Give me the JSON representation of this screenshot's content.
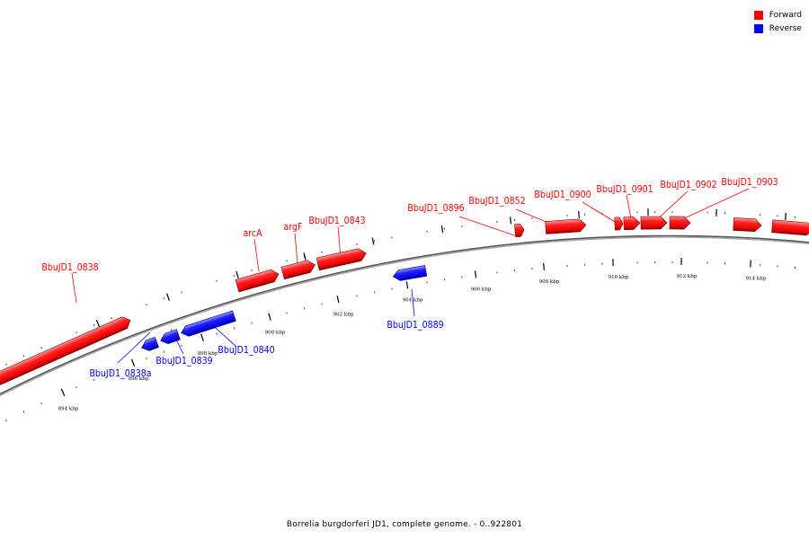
{
  "legend": [
    {
      "label": "Forward",
      "color": "#ff0000"
    },
    {
      "label": "Reverse",
      "color": "#0000ff"
    }
  ],
  "caption": "Borrelia burgdorferi JD1, complete genome. - 0..922801",
  "axis": {
    "unit": "kbp",
    "labels": [
      "894 kbp",
      "896 kbp",
      "898 kbp",
      "900 kbp",
      "902 kbp",
      "904 kbp",
      "906 kbp",
      "908 kbp",
      "910 kbp",
      "912 kbp",
      "914 kbp"
    ]
  },
  "genes": [
    {
      "name": "BbuJD1_0838",
      "strand": "forward"
    },
    {
      "name": "arcA",
      "strand": "forward"
    },
    {
      "name": "argF",
      "strand": "forward"
    },
    {
      "name": "BbuJD1_0843",
      "strand": "forward"
    },
    {
      "name": "BbuJD1_0896",
      "strand": "forward"
    },
    {
      "name": "BbuJD1_0852",
      "strand": "forward"
    },
    {
      "name": "BbuJD1_0900",
      "strand": "forward"
    },
    {
      "name": "BbuJD1_0901",
      "strand": "forward"
    },
    {
      "name": "BbuJD1_0902",
      "strand": "forward"
    },
    {
      "name": "BbuJD1_0903",
      "strand": "forward"
    },
    {
      "name": "BbuJD1_0838a",
      "strand": "reverse"
    },
    {
      "name": "BbuJD1_0839",
      "strand": "reverse"
    },
    {
      "name": "BbuJD1_0840",
      "strand": "reverse"
    },
    {
      "name": "BbuJD1_0889",
      "strand": "reverse"
    }
  ],
  "colors": {
    "forward": "#ff0000",
    "reverse": "#0000ff",
    "backbone": "#7f7f7f"
  }
}
